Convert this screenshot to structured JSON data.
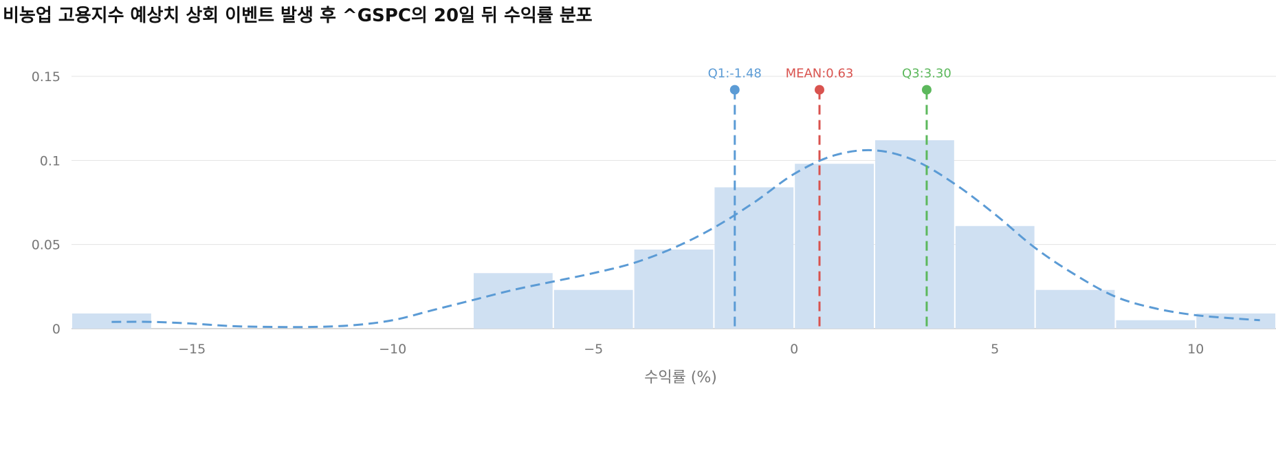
{
  "title": "비농업 고용지수 예상치 상회 이벤트 발생 후 ^GSPC의 20일 뒤 수익률 분포",
  "chart_data": {
    "type": "histogram",
    "title": "비농업 고용지수 예상치 상회 이벤트 발생 후 ^GSPC의 20일 뒤 수익률 분포",
    "xlabel": "수익률 (%)",
    "ylabel": "",
    "xlim": [
      -18,
      12
    ],
    "ylim": [
      0,
      0.15
    ],
    "x_ticks": [
      -15,
      -10,
      -5,
      0,
      5,
      10
    ],
    "x_tick_labels": [
      "−15",
      "−10",
      "−5",
      "0",
      "5",
      "10"
    ],
    "y_ticks": [
      0,
      0.05,
      0.1,
      0.15
    ],
    "y_tick_labels": [
      "0",
      "0.05",
      "0.1",
      "0.15"
    ],
    "grid": "horizontal",
    "bar_color": "#cfe0f2",
    "bins": [
      {
        "start": -18,
        "end": -16,
        "density": 0.009
      },
      {
        "start": -16,
        "end": -14,
        "density": 0.0
      },
      {
        "start": -14,
        "end": -12,
        "density": 0.0
      },
      {
        "start": -12,
        "end": -10,
        "density": 0.0
      },
      {
        "start": -10,
        "end": -8,
        "density": 0.0
      },
      {
        "start": -8,
        "end": -6,
        "density": 0.033
      },
      {
        "start": -6,
        "end": -4,
        "density": 0.023
      },
      {
        "start": -4,
        "end": -2,
        "density": 0.047
      },
      {
        "start": -2,
        "end": 0,
        "density": 0.084
      },
      {
        "start": 0,
        "end": 2,
        "density": 0.098
      },
      {
        "start": 2,
        "end": 4,
        "density": 0.112
      },
      {
        "start": 4,
        "end": 6,
        "density": 0.061
      },
      {
        "start": 6,
        "end": 8,
        "density": 0.023
      },
      {
        "start": 8,
        "end": 10,
        "density": 0.005
      },
      {
        "start": 10,
        "end": 12,
        "density": 0.009
      }
    ],
    "kde": {
      "color": "#5b9bd5",
      "style": "dashed",
      "points": [
        [
          -17,
          0.004
        ],
        [
          -16,
          0.004
        ],
        [
          -15,
          0.003
        ],
        [
          -14,
          0.0015
        ],
        [
          -13,
          0.001
        ],
        [
          -12,
          0.001
        ],
        [
          -11,
          0.002
        ],
        [
          -10,
          0.005
        ],
        [
          -9,
          0.011
        ],
        [
          -8,
          0.017
        ],
        [
          -7,
          0.023
        ],
        [
          -6,
          0.028
        ],
        [
          -5,
          0.033
        ],
        [
          -4,
          0.039
        ],
        [
          -3,
          0.048
        ],
        [
          -2,
          0.06
        ],
        [
          -1,
          0.075
        ],
        [
          0,
          0.092
        ],
        [
          1,
          0.103
        ],
        [
          2,
          0.106
        ],
        [
          3,
          0.1
        ],
        [
          4,
          0.086
        ],
        [
          5,
          0.068
        ],
        [
          6,
          0.048
        ],
        [
          7,
          0.032
        ],
        [
          8,
          0.019
        ],
        [
          9,
          0.012
        ],
        [
          10,
          0.008
        ],
        [
          11,
          0.006
        ],
        [
          11.6,
          0.005
        ]
      ]
    },
    "markers": [
      {
        "label": "Q1:-1.48",
        "value": -1.48,
        "color": "#5b9bd5"
      },
      {
        "label": "MEAN:0.63",
        "value": 0.63,
        "color": "#d9534f"
      },
      {
        "label": "Q3:3.30",
        "value": 3.3,
        "color": "#5cb85c"
      }
    ],
    "marker_level": 0.142
  }
}
